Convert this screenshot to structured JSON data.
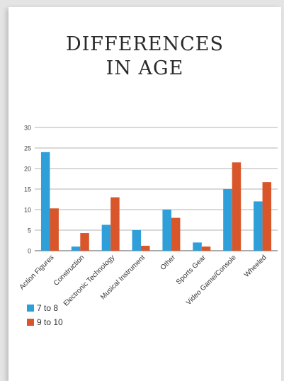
{
  "chart_data": {
    "type": "bar",
    "title": [
      "DIFFERENCES",
      "IN AGE"
    ],
    "xlabel": "",
    "ylabel": "",
    "categories": [
      "Action Figures",
      "Construction",
      "Electronic Technology",
      "Musical Instrument",
      "Other",
      "Sports Gear",
      "Video Game/Console",
      "Wheeled"
    ],
    "series": [
      {
        "name": "7 to 8",
        "color": "#2e9fd8",
        "values": [
          24,
          1,
          6.3,
          5,
          10,
          2,
          15,
          12
        ]
      },
      {
        "name": "9 to 10",
        "color": "#d8562a",
        "values": [
          10.3,
          4.3,
          13,
          1.2,
          8,
          1,
          21.5,
          16.7
        ]
      }
    ],
    "ylim": [
      0,
      30
    ],
    "yticks": [
      0,
      5,
      10,
      15,
      20,
      25,
      30
    ],
    "grid": true,
    "legend_position": "bottom-left"
  }
}
